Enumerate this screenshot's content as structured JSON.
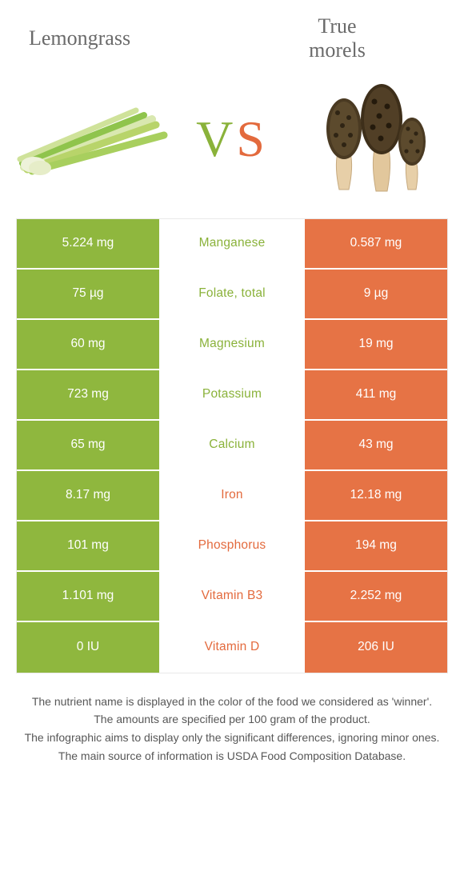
{
  "colors": {
    "green_bg": "#8fb73e",
    "green_text": "#8ab23a",
    "orange_bg": "#e67345",
    "orange_text": "#e36a3d",
    "cell_text": "#ffffff",
    "grey_text": "#6a6a6a"
  },
  "header": {
    "left_title": "Lemongrass",
    "right_title": "True\nmorels",
    "vs_v": "V",
    "vs_s": "S"
  },
  "rows": [
    {
      "label": "Manganese",
      "left": "5.224 mg",
      "right": "0.587 mg",
      "winner": "left"
    },
    {
      "label": "Folate, total",
      "left": "75 µg",
      "right": "9 µg",
      "winner": "left"
    },
    {
      "label": "Magnesium",
      "left": "60 mg",
      "right": "19 mg",
      "winner": "left"
    },
    {
      "label": "Potassium",
      "left": "723 mg",
      "right": "411 mg",
      "winner": "left"
    },
    {
      "label": "Calcium",
      "left": "65 mg",
      "right": "43 mg",
      "winner": "left"
    },
    {
      "label": "Iron",
      "left": "8.17 mg",
      "right": "12.18 mg",
      "winner": "right"
    },
    {
      "label": "Phosphorus",
      "left": "101 mg",
      "right": "194 mg",
      "winner": "right"
    },
    {
      "label": "Vitamin B3",
      "left": "1.101 mg",
      "right": "2.252 mg",
      "winner": "right"
    },
    {
      "label": "Vitamin D",
      "left": "0 IU",
      "right": "206 IU",
      "winner": "right"
    }
  ],
  "footer": {
    "l1": "The nutrient name is displayed in the color of the food we considered as 'winner'.",
    "l2": "The amounts are specified per 100 gram of the product.",
    "l3": "The infographic aims to display only the significant differences, ignoring minor ones.",
    "l4": "The main source of information is USDA Food Composition Database."
  }
}
